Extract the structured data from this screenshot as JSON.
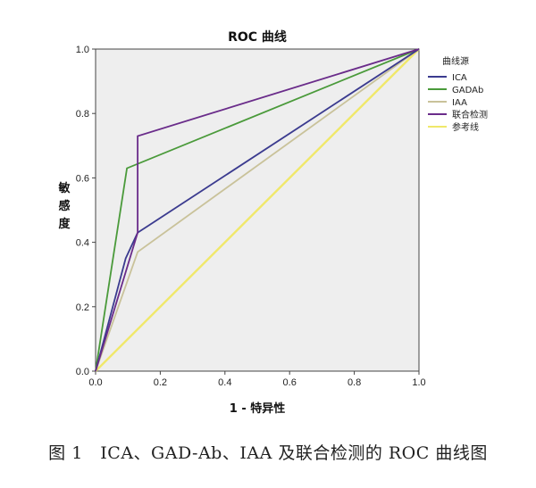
{
  "chart_data": {
    "type": "line",
    "title": "ROC 曲线",
    "xlabel": "1 - 特异性",
    "ylabel": "敏感度",
    "xlim": [
      0.0,
      1.0
    ],
    "ylim": [
      0.0,
      1.0
    ],
    "x_ticks": [
      "0.0",
      "0.2",
      "0.4",
      "0.6",
      "0.8",
      "1.0"
    ],
    "y_ticks": [
      "0.0",
      "0.2",
      "0.4",
      "0.6",
      "0.8",
      "1.0"
    ],
    "grid": false,
    "background": "#eeeeee",
    "legend_title": "曲线源",
    "legend_position": "right",
    "series": [
      {
        "name": "ICA",
        "color": "#3b3b8f",
        "points": [
          [
            0.0,
            0.0
          ],
          [
            0.093,
            0.35
          ],
          [
            0.13,
            0.43
          ],
          [
            1.0,
            1.0
          ]
        ]
      },
      {
        "name": "GADAb",
        "color": "#4a9a3a",
        "points": [
          [
            0.0,
            0.0
          ],
          [
            0.097,
            0.63
          ],
          [
            1.0,
            1.0
          ]
        ]
      },
      {
        "name": "IAA",
        "color": "#c9c29a",
        "points": [
          [
            0.0,
            0.0
          ],
          [
            0.13,
            0.37
          ],
          [
            1.0,
            1.0
          ]
        ]
      },
      {
        "name": "联合检测",
        "color": "#6a2c8a",
        "points": [
          [
            0.0,
            0.0
          ],
          [
            0.13,
            0.43
          ],
          [
            0.13,
            0.73
          ],
          [
            1.0,
            1.0
          ]
        ]
      },
      {
        "name": "参考线",
        "color": "#f0e86a",
        "points": [
          [
            0.0,
            0.0
          ],
          [
            1.0,
            1.0
          ]
        ]
      }
    ]
  },
  "caption": "图 1　ICA、GAD-Ab、IAA 及联合检测的 ROC 曲线图"
}
